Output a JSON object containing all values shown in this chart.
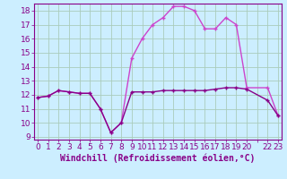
{
  "xlabel": "Windchill (Refroidissement éolien,°C)",
  "bg_color": "#cceeff",
  "grid_color": "#aaccbb",
  "line_dark_color": "#880088",
  "line_light_color": "#cc44cc",
  "x": [
    0,
    1,
    2,
    3,
    4,
    5,
    6,
    7,
    8,
    9,
    10,
    11,
    12,
    13,
    14,
    15,
    16,
    17,
    18,
    19,
    20,
    22,
    23
  ],
  "temp": [
    11.8,
    11.9,
    12.3,
    12.2,
    12.1,
    12.1,
    11.0,
    9.3,
    10.0,
    12.2,
    12.2,
    12.2,
    12.3,
    12.3,
    12.3,
    12.3,
    12.3,
    12.4,
    12.5,
    12.5,
    12.4,
    11.6,
    10.5
  ],
  "windchill": [
    11.8,
    11.9,
    12.3,
    12.2,
    12.1,
    12.1,
    11.0,
    9.3,
    10.0,
    14.6,
    16.0,
    17.0,
    17.5,
    18.3,
    18.3,
    18.0,
    16.7,
    16.7,
    17.5,
    17.0,
    12.5,
    12.5,
    10.5
  ],
  "ylim": [
    8.8,
    18.5
  ],
  "xlim": [
    -0.3,
    23.3
  ],
  "yticks": [
    9,
    10,
    11,
    12,
    13,
    14,
    15,
    16,
    17,
    18
  ],
  "xlabel_fontsize": 7,
  "tick_fontsize": 6.5
}
